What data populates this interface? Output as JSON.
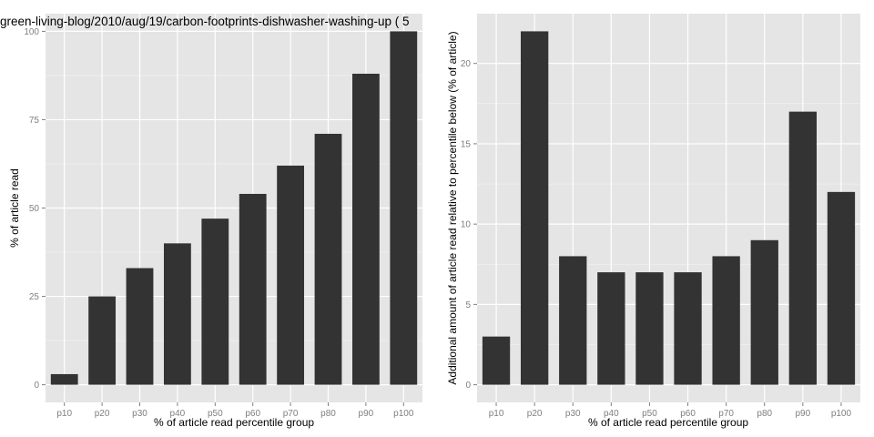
{
  "colors": {
    "panel": "#e5e5e5",
    "grid_major": "#ffffff",
    "grid_minor": "#f2f2f2",
    "bar": "#333333",
    "tick_text": "#7f7f7f"
  },
  "chart_data": [
    {
      "type": "bar",
      "title": "green-living-blog/2010/aug/19/carbon-footprints-dishwasher-washing-up ( 5",
      "xlabel": "% of article read percentile group",
      "ylabel": "% of article read",
      "categories": [
        "p10",
        "p20",
        "p30",
        "p40",
        "p50",
        "p60",
        "p70",
        "p80",
        "p90",
        "p100"
      ],
      "values": [
        3,
        25,
        33,
        40,
        47,
        54,
        62,
        71,
        88,
        100
      ],
      "yticks": [
        0,
        25,
        50,
        75,
        100
      ],
      "ylim": [
        -5,
        105
      ],
      "grid": true
    },
    {
      "type": "bar",
      "title": "",
      "xlabel": "% of article read percentile group",
      "ylabel": "Additional amount of article read relative to percentile below (% of article)",
      "categories": [
        "p10",
        "p20",
        "p30",
        "p40",
        "p50",
        "p60",
        "p70",
        "p80",
        "p90",
        "p100"
      ],
      "values": [
        3,
        22,
        8,
        7,
        7,
        7,
        8,
        9,
        17,
        12
      ],
      "yticks": [
        0,
        5,
        10,
        15,
        20
      ],
      "ylim": [
        -1.1,
        23.1
      ],
      "grid": true
    }
  ]
}
